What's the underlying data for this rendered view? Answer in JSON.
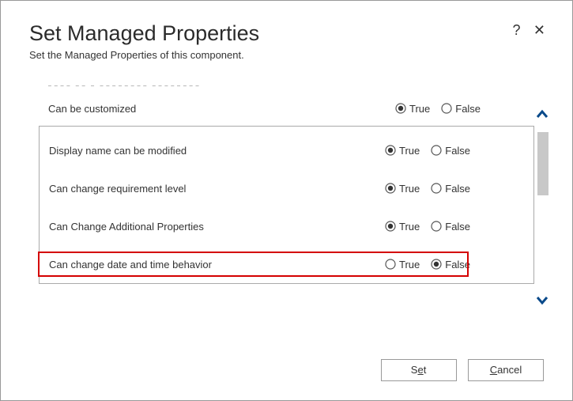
{
  "dialog": {
    "title": "Set Managed Properties",
    "subtitle": "Set the Managed Properties of this component.",
    "truncated_hint": "part of a managed solution."
  },
  "labels": {
    "true": "True",
    "false": "False"
  },
  "rows": {
    "can_customize": {
      "label": "Can be customized",
      "value": true,
      "highlight": false
    },
    "display_name": {
      "label": "Display name can be modified",
      "value": true,
      "highlight": false
    },
    "req_level": {
      "label": "Can change requirement level",
      "value": true,
      "highlight": false
    },
    "additional": {
      "label": "Can Change Additional Properties",
      "value": true,
      "highlight": false
    },
    "datetime": {
      "label": "Can change date and time behavior",
      "value": false,
      "highlight": true
    }
  },
  "buttons": {
    "set": {
      "pre": "S",
      "ul": "e",
      "post": "t"
    },
    "cancel": {
      "pre": "",
      "ul": "C",
      "post": "ancel"
    }
  },
  "colors": {
    "highlight_border": "#d40000",
    "radio_stroke": "#555555",
    "radio_fill": "#333333",
    "arrow": "#0a4a8a"
  }
}
